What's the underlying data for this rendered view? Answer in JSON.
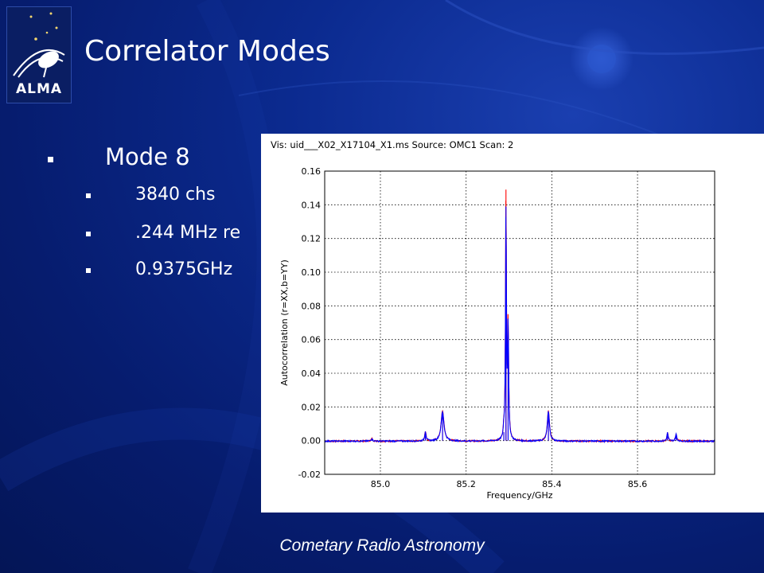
{
  "slide": {
    "title": "Correlator Modes",
    "logo_text": "ALMA",
    "bullets": [
      {
        "level": 1,
        "text": "Mode 8"
      },
      {
        "level": 2,
        "text": "3840 chs"
      },
      {
        "level": 2,
        "text": ".244 MHz re"
      },
      {
        "level": 2,
        "text": "0.9375GHz"
      }
    ],
    "footer": "Cometary Radio Astronomy"
  },
  "colors": {
    "background": "#0b2a8f",
    "text": "#ffffff",
    "series_r": "#ff0000",
    "series_b": "#0000ff"
  },
  "chart_data": {
    "type": "line",
    "title": "Vis: uid___X02_X17104_X1.ms Source: OMC1 Scan: 2",
    "xlabel": "Frequency/GHz",
    "ylabel": "Autocorrelation (r=XX,b=YY)",
    "xlim": [
      84.87,
      85.78
    ],
    "ylim": [
      -0.02,
      0.16
    ],
    "xticks": [
      "85.0",
      "85.2",
      "85.4",
      "85.6"
    ],
    "xtick_values": [
      85.0,
      85.2,
      85.4,
      85.6
    ],
    "yticks": [
      "-0.02",
      "0.00",
      "0.02",
      "0.04",
      "0.06",
      "0.08",
      "0.10",
      "0.12",
      "0.14",
      "0.16"
    ],
    "ytick_values": [
      -0.02,
      0.0,
      0.02,
      0.04,
      0.06,
      0.08,
      0.1,
      0.12,
      0.14,
      0.16
    ],
    "grid": true,
    "baseline": 0.0,
    "series": [
      {
        "color": "#ff0000",
        "peaks": [
          {
            "x": 84.98,
            "y": 0.0015,
            "w": 0.002
          },
          {
            "x": 85.105,
            "y": 0.0055,
            "w": 0.002
          },
          {
            "x": 85.145,
            "y": 0.018,
            "w": 0.004
          },
          {
            "x": 85.288,
            "y": 0.005,
            "w": 0.0015
          },
          {
            "x": 85.293,
            "y": 0.149,
            "w": 0.0012
          },
          {
            "x": 85.298,
            "y": 0.069,
            "w": 0.0015
          },
          {
            "x": 85.392,
            "y": 0.018,
            "w": 0.003
          },
          {
            "x": 85.67,
            "y": 0.005,
            "w": 0.0018
          },
          {
            "x": 85.69,
            "y": 0.004,
            "w": 0.002
          }
        ]
      },
      {
        "color": "#0000ff",
        "peaks": [
          {
            "x": 84.98,
            "y": 0.0015,
            "w": 0.002
          },
          {
            "x": 85.105,
            "y": 0.0055,
            "w": 0.002
          },
          {
            "x": 85.145,
            "y": 0.0175,
            "w": 0.004
          },
          {
            "x": 85.288,
            "y": 0.005,
            "w": 0.0015
          },
          {
            "x": 85.293,
            "y": 0.139,
            "w": 0.0012
          },
          {
            "x": 85.298,
            "y": 0.067,
            "w": 0.0015
          },
          {
            "x": 85.392,
            "y": 0.0175,
            "w": 0.003
          },
          {
            "x": 85.67,
            "y": 0.005,
            "w": 0.0018
          },
          {
            "x": 85.69,
            "y": 0.004,
            "w": 0.002
          }
        ]
      }
    ]
  }
}
